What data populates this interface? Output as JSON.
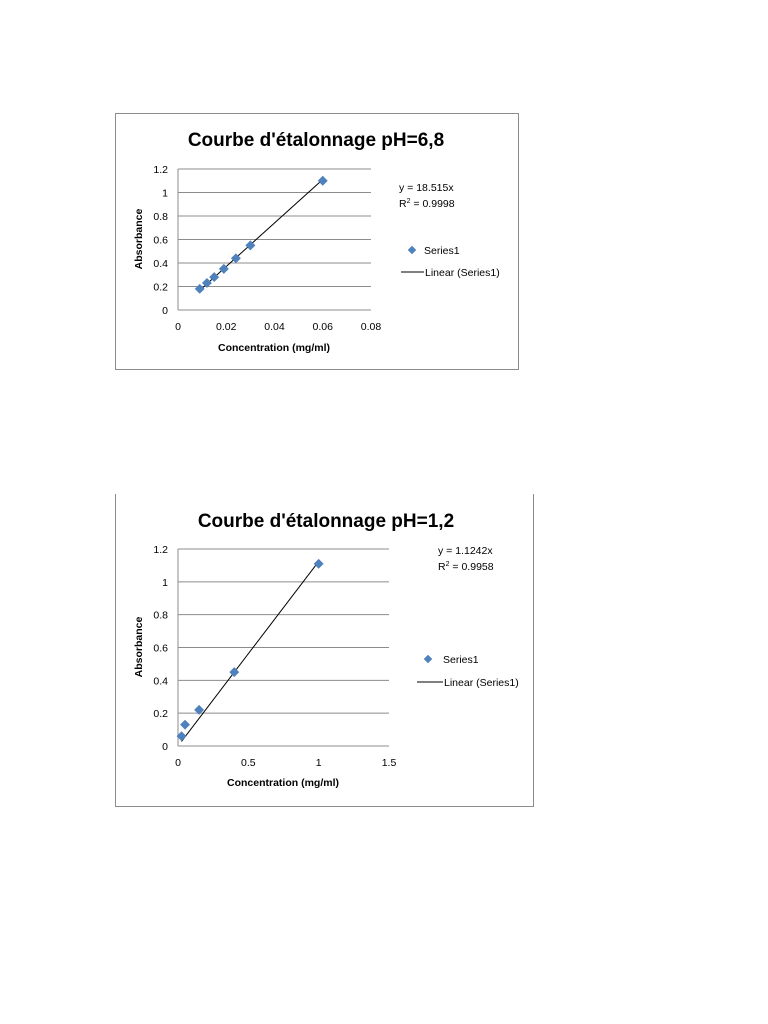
{
  "chart_data": [
    {
      "type": "scatter",
      "title": "Courbe d'étalonnage pH=6,8",
      "xlabel": "Concentration (mg/ml)",
      "ylabel": "Absorbance",
      "xlim": [
        0,
        0.08
      ],
      "ylim": [
        0,
        1.2
      ],
      "x_ticks": [
        "0",
        "0.02",
        "0.04",
        "0.06",
        "0.08"
      ],
      "y_ticks": [
        "0",
        "0.2",
        "0.4",
        "0.6",
        "0.8",
        "1",
        "1.2"
      ],
      "grid": "horizontal",
      "legend_position": "right",
      "series": [
        {
          "name": "Series1",
          "marker": "diamond",
          "color": "#4f81bd",
          "x": [
            0.009,
            0.012,
            0.015,
            0.019,
            0.024,
            0.03,
            0.06
          ],
          "y": [
            0.18,
            0.23,
            0.28,
            0.35,
            0.44,
            0.55,
            1.1
          ]
        },
        {
          "name": "Linear (Series1)",
          "type": "trendline",
          "color": "#000000",
          "slope": 18.515,
          "x_range": [
            0.009,
            0.06
          ]
        }
      ],
      "annotations": {
        "equation": "y = 18.515x",
        "r2_prefix": "R",
        "r2_sup": "2",
        "r2_value": " = 0.9998"
      },
      "legend": [
        "Series1",
        "Linear (Series1)"
      ]
    },
    {
      "type": "scatter",
      "title": "Courbe d'étalonnage pH=1,2",
      "xlabel": "Concentration (mg/ml)",
      "ylabel": "Absorbance",
      "xlim": [
        0,
        1.5
      ],
      "ylim": [
        0,
        1.2
      ],
      "x_ticks": [
        "0",
        "0.5",
        "1",
        "1.5"
      ],
      "y_ticks": [
        "0",
        "0.2",
        "0.4",
        "0.6",
        "0.8",
        "1",
        "1.2"
      ],
      "grid": "horizontal",
      "legend_position": "right",
      "series": [
        {
          "name": "Series1",
          "marker": "diamond",
          "color": "#4f81bd",
          "x": [
            0.025,
            0.05,
            0.15,
            0.4,
            1.0
          ],
          "y": [
            0.06,
            0.13,
            0.22,
            0.45,
            1.11
          ]
        },
        {
          "name": "Linear (Series1)",
          "type": "trendline",
          "color": "#000000",
          "slope": 1.1242,
          "x_range": [
            0.025,
            1.0
          ]
        }
      ],
      "annotations": {
        "equation": "y = 1.1242x",
        "r2_prefix": "R",
        "r2_sup": "2",
        "r2_value": " = 0.9958"
      },
      "legend": [
        "Series1",
        "Linear (Series1)"
      ]
    }
  ]
}
